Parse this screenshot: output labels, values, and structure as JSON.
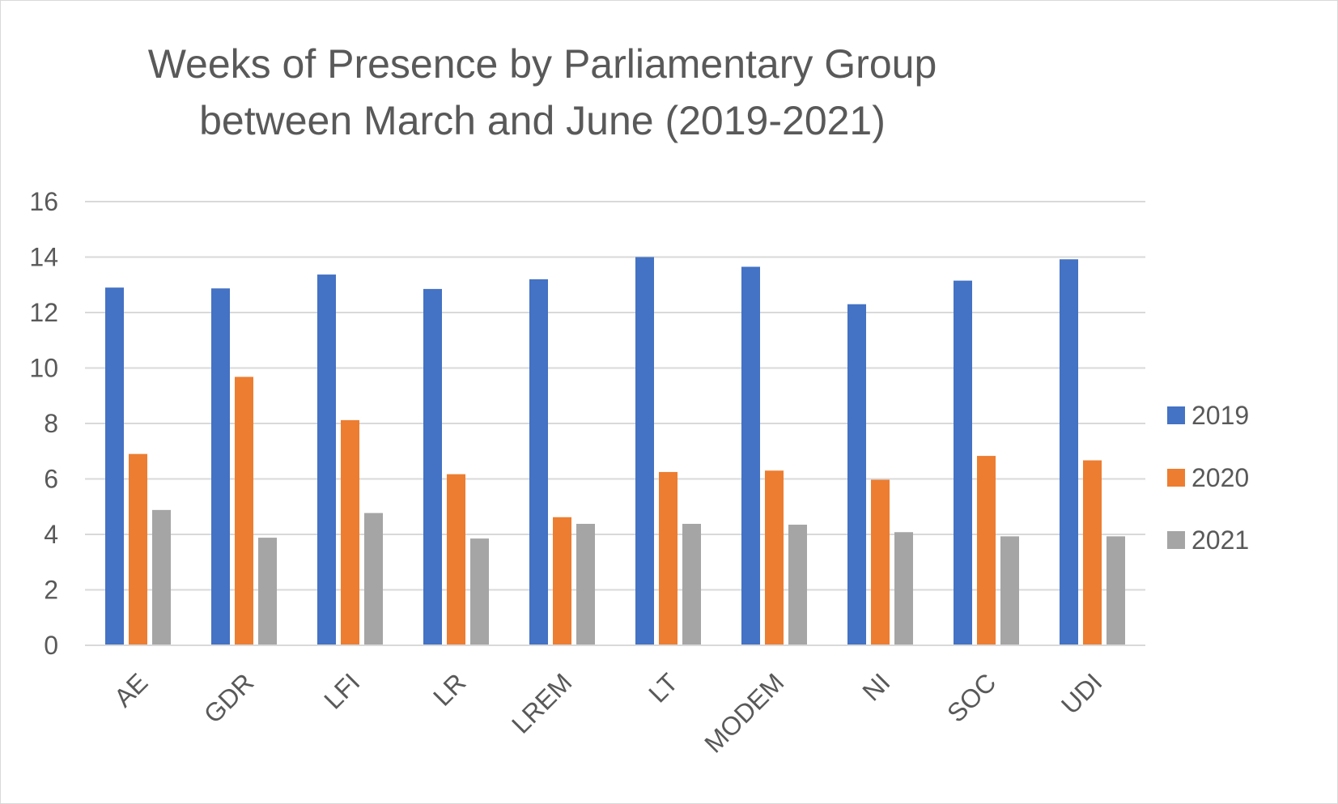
{
  "chart_data": {
    "type": "bar",
    "title_lines": [
      "Weeks of Presence by Parliamentary Group",
      "between March and June (2019-2021)"
    ],
    "categories": [
      "AE",
      "GDR",
      "LFI",
      "LR",
      "LREM",
      "LT",
      "MODEM",
      "NI",
      "SOC",
      "UDI"
    ],
    "series": [
      {
        "name": "2019",
        "color": "#4472C4",
        "values": [
          12.9,
          12.87,
          13.37,
          12.85,
          13.2,
          14.0,
          13.65,
          12.3,
          13.15,
          13.92
        ]
      },
      {
        "name": "2020",
        "color": "#ED7D31",
        "values": [
          6.9,
          9.68,
          8.12,
          6.17,
          4.62,
          6.25,
          6.3,
          5.97,
          6.83,
          6.67
        ]
      },
      {
        "name": "2021",
        "color": "#A5A5A5",
        "values": [
          4.88,
          3.88,
          4.77,
          3.85,
          4.38,
          4.38,
          4.35,
          4.08,
          3.93,
          3.93
        ]
      }
    ],
    "ylim": [
      0,
      16
    ],
    "yticks": [
      "0",
      "2",
      "4",
      "6",
      "8",
      "10",
      "12",
      "14",
      "16"
    ],
    "xlabel": "",
    "ylabel": "",
    "grid": true,
    "legend_position": "right"
  }
}
